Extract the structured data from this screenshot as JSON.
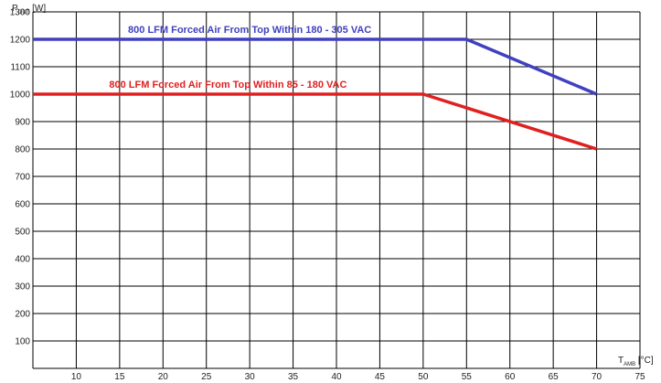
{
  "chart_data": {
    "type": "line",
    "xlabel": {
      "main": "T",
      "sub": "AMB",
      "unit": " [°C]"
    },
    "ylabel": {
      "main": "P",
      "sub": "OUT",
      "unit": " [W]"
    },
    "xlim": [
      5,
      75
    ],
    "ylim": [
      0,
      1300
    ],
    "x_ticks": [
      10,
      15,
      20,
      25,
      30,
      35,
      40,
      45,
      50,
      55,
      60,
      65,
      70,
      75
    ],
    "y_ticks": [
      100,
      200,
      300,
      400,
      500,
      600,
      700,
      800,
      900,
      1000,
      1100,
      1200,
      1300
    ],
    "grid": true,
    "series": [
      {
        "name": "800 LFM Forced Air From Top Within 180 - 305 VAC",
        "color": "#4040c0",
        "points": [
          [
            5,
            1200
          ],
          [
            55,
            1200
          ],
          [
            70,
            1000
          ]
        ]
      },
      {
        "name": "800 LFM Forced Air From Top Within 85 - 180 VAC",
        "color": "#e02020",
        "points": [
          [
            5,
            1000
          ],
          [
            50,
            1000
          ],
          [
            70,
            800
          ]
        ]
      }
    ]
  }
}
